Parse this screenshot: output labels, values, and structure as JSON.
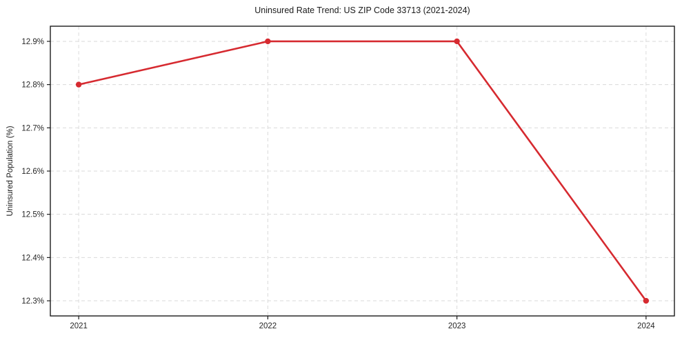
{
  "chart_data": {
    "type": "line",
    "title": "Uninsured Rate Trend: US ZIP Code 33713 (2021-2024)",
    "xlabel": "",
    "ylabel": "Uninsured Population (%)",
    "x": [
      2021,
      2022,
      2023,
      2024
    ],
    "categories": [
      "2021",
      "2022",
      "2023",
      "2024"
    ],
    "series": [
      {
        "name": "Uninsured Population (%)",
        "values": [
          12.8,
          12.9,
          12.9,
          12.3
        ],
        "color": "#d62a30",
        "marker": "circle"
      }
    ],
    "xlim": [
      2020.85,
      2024.15
    ],
    "ylim": [
      12.265,
      12.935
    ],
    "xticks": [
      2021,
      2022,
      2023,
      2024
    ],
    "xtick_labels": [
      "2021",
      "2022",
      "2023",
      "2024"
    ],
    "yticks": [
      12.3,
      12.4,
      12.5,
      12.6,
      12.7,
      12.8,
      12.9
    ],
    "ytick_labels": [
      "12.3%",
      "12.4%",
      "12.5%",
      "12.6%",
      "12.7%",
      "12.8%",
      "12.9%"
    ],
    "grid": {
      "show": true,
      "color": "#dadada",
      "style": "dashed"
    },
    "legend": {
      "show": false
    },
    "colors": {
      "line": "#d62a30",
      "spine": "#1a1a1a",
      "tick_text": "#262626",
      "background": "#ffffff"
    }
  }
}
